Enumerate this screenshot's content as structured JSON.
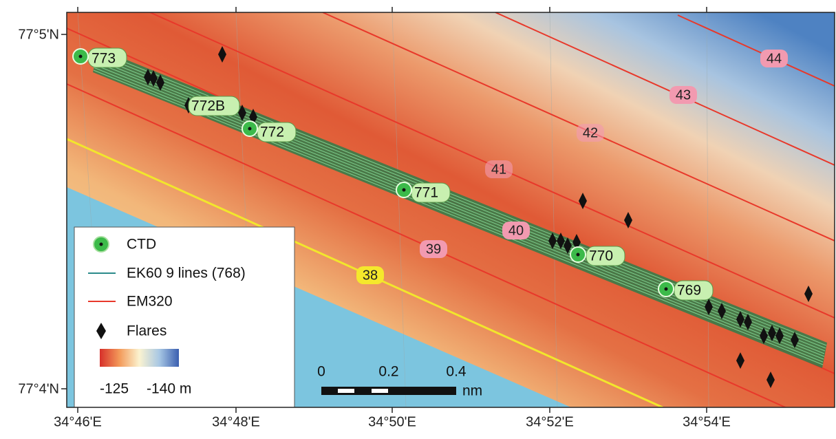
{
  "map": {
    "lat_labels": [
      "77°5'N",
      "77°4'N"
    ],
    "lon_labels": [
      "34°46'E",
      "34°48'E",
      "34°50'E",
      "34°52'E",
      "34°54'E"
    ],
    "stations": [
      "773",
      "772B",
      "772",
      "771",
      "770",
      "769"
    ],
    "survey_lines": [
      "38",
      "39",
      "40",
      "41",
      "42",
      "43",
      "44"
    ],
    "legend": [
      "CTD",
      "EK60 9 lines (768)",
      "EM320",
      "Flares"
    ],
    "colorbar_labels": [
      "-125",
      "-140 m"
    ],
    "scale_bar": {
      "labels": [
        "0",
        "0.2",
        "0.4"
      ],
      "unit": "nm"
    }
  }
}
